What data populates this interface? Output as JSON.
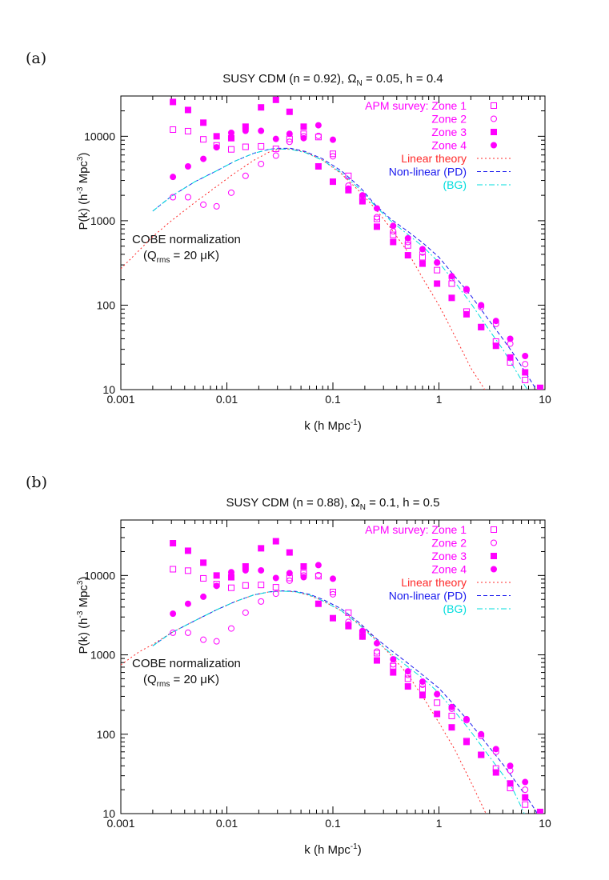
{
  "chart_data": [
    {
      "type": "line",
      "panel_label": "(a)",
      "title_main": "SUSY CDM (n = 0.92),",
      "title_omega": "Ω",
      "title_omega_sub": "N",
      "title_rest": "= 0.05,  h = 0.4",
      "xlabel_main": "k (h Mpc",
      "xlabel_sup": "-1",
      "xlabel_end": ")",
      "ylabel_main": "P(k) (h",
      "ylabel_sup1": "-3",
      "ylabel_mid": " Mpc",
      "ylabel_sup2": "3",
      "ylabel_end": ")",
      "xscale": "log",
      "yscale": "log",
      "xlim": [
        0.001,
        10
      ],
      "ylim": [
        10,
        30000
      ],
      "x_ticks": [
        "0.001",
        "0.01",
        "0.1",
        "1",
        "10"
      ],
      "y_ticks": [
        "10",
        "100",
        "1000",
        "10000"
      ],
      "annotation_line1": "COBE normalization",
      "annotation_q": "(Q",
      "annotation_q_sub": "rms",
      "annotation_q_end": " = 20 μK)",
      "legend_position": "top-right",
      "series": [
        {
          "name": "APM survey: Zone 1",
          "style": "open-square",
          "color": "#ff00ff",
          "x": [
            0.0031,
            0.0043,
            0.006,
            0.008,
            0.011,
            0.015,
            0.021,
            0.029,
            0.039,
            0.053,
            0.073,
            0.1,
            0.14,
            0.19,
            0.26,
            0.37,
            0.51,
            0.7,
            0.96,
            1.32,
            1.82,
            2.5,
            3.45,
            4.7,
            6.5
          ],
          "y": [
            12000,
            11500,
            9200,
            7800,
            7000,
            7500,
            7600,
            7100,
            9300,
            10700,
            9800,
            6200,
            3400,
            1900,
            1050,
            680,
            510,
            370,
            260,
            180,
            84,
            55,
            37,
            21,
            13
          ]
        },
        {
          "name": "Zone 2",
          "style": "open-circle",
          "color": "#ff00ff",
          "x": [
            0.0031,
            0.0043,
            0.006,
            0.008,
            0.011,
            0.015,
            0.021,
            0.029,
            0.039,
            0.053,
            0.073,
            0.1,
            0.14,
            0.19,
            0.26,
            0.37,
            0.51,
            0.7,
            0.96,
            1.32,
            1.82,
            2.5,
            3.45,
            4.7,
            6.5
          ],
          "y": [
            1900,
            1900,
            1550,
            1480,
            2150,
            3400,
            4700,
            5900,
            8600,
            10000,
            10100,
            5800,
            2600,
            1700,
            1100,
            750,
            560,
            420,
            320,
            210,
            150,
            95,
            60,
            35,
            20
          ]
        },
        {
          "name": "Zone 3",
          "style": "filled-square",
          "color": "#ff00ff",
          "x": [
            0.0031,
            0.0043,
            0.006,
            0.008,
            0.011,
            0.015,
            0.021,
            0.029,
            0.039,
            0.053,
            0.073,
            0.1,
            0.14,
            0.19,
            0.26,
            0.37,
            0.51,
            0.7,
            0.96,
            1.32,
            1.82,
            2.5,
            3.45,
            4.7,
            6.5,
            9.0
          ],
          "y": [
            25500,
            20500,
            14500,
            10000,
            9500,
            13000,
            22000,
            27000,
            19500,
            13000,
            4400,
            2900,
            2300,
            1700,
            850,
            560,
            390,
            310,
            180,
            122,
            78,
            55,
            33,
            24,
            16,
            10.5
          ]
        },
        {
          "name": "Zone 4",
          "style": "filled-circle",
          "color": "#ff00ff",
          "x": [
            0.0031,
            0.0043,
            0.006,
            0.008,
            0.011,
            0.015,
            0.021,
            0.029,
            0.039,
            0.053,
            0.073,
            0.1,
            0.14,
            0.19,
            0.26,
            0.37,
            0.51,
            0.7,
            0.96,
            1.32,
            1.82,
            2.5,
            3.45,
            4.7,
            6.5
          ],
          "y": [
            3300,
            4400,
            5400,
            7400,
            11000,
            11600,
            11600,
            9300,
            10700,
            9500,
            13500,
            9100,
            2400,
            2000,
            1400,
            870,
            620,
            460,
            320,
            220,
            155,
            100,
            65,
            40,
            25
          ]
        },
        {
          "name": "Linear theory",
          "style": "dotted",
          "color": "#ff2a2a",
          "x": [
            0.001,
            0.0015,
            0.002,
            0.003,
            0.005,
            0.008,
            0.012,
            0.018,
            0.025,
            0.03,
            0.04,
            0.055,
            0.08,
            0.12,
            0.18,
            0.25,
            0.35,
            0.5,
            0.7,
            1.0,
            1.4,
            2.0,
            2.7,
            3.1
          ],
          "y": [
            270,
            450,
            650,
            1000,
            1650,
            2550,
            3700,
            5200,
            6500,
            7000,
            7100,
            6500,
            5200,
            3600,
            2200,
            1400,
            820,
            440,
            210,
            100,
            44,
            18,
            10,
            7
          ]
        },
        {
          "name": "Non-linear (PD)",
          "style": "dashed",
          "color": "#1a1aee",
          "x": [
            0.002,
            0.003,
            0.005,
            0.008,
            0.012,
            0.018,
            0.025,
            0.03,
            0.04,
            0.055,
            0.08,
            0.12,
            0.18,
            0.25,
            0.35,
            0.5,
            0.7,
            1.0,
            1.5,
            2.0,
            3.0,
            4.0,
            5.0,
            7.0,
            8.5
          ],
          "y": [
            1300,
            1950,
            2900,
            3900,
            5100,
            6300,
            7000,
            7200,
            7200,
            6600,
            5400,
            3900,
            2500,
            1550,
            1050,
            760,
            550,
            370,
            200,
            130,
            65,
            40,
            27,
            14,
            9.5
          ]
        },
        {
          "name": "(BG)",
          "style": "dash-dot",
          "color": "#00dddd",
          "x": [
            0.002,
            0.003,
            0.005,
            0.008,
            0.012,
            0.018,
            0.025,
            0.03,
            0.04,
            0.055,
            0.08,
            0.12,
            0.18,
            0.25,
            0.35,
            0.5,
            0.7,
            1.0,
            1.5,
            2.0,
            3.0,
            4.0,
            5.0,
            6.5,
            7.5
          ],
          "y": [
            1300,
            1950,
            2900,
            3900,
            5100,
            6300,
            7000,
            7100,
            7000,
            6400,
            5200,
            3700,
            2350,
            1500,
            1000,
            700,
            500,
            320,
            170,
            105,
            50,
            30,
            19,
            11,
            8.5
          ]
        }
      ]
    },
    {
      "type": "line",
      "panel_label": "(b)",
      "title_main": "SUSY CDM (n = 0.88),",
      "title_omega": "Ω",
      "title_omega_sub": "N",
      "title_rest": "= 0.1,  h = 0.5",
      "xlabel_main": "k (h Mpc",
      "xlabel_sup": "-1",
      "xlabel_end": ")",
      "ylabel_main": "P(k) (h",
      "ylabel_sup1": "-3",
      "ylabel_mid": " Mpc",
      "ylabel_sup2": "3",
      "ylabel_end": ")",
      "xscale": "log",
      "yscale": "log",
      "xlim": [
        0.001,
        10
      ],
      "ylim": [
        10,
        50000
      ],
      "x_ticks": [
        "0.001",
        "0.01",
        "0.1",
        "1",
        "10"
      ],
      "y_ticks": [
        "10",
        "100",
        "1000",
        "10000"
      ],
      "annotation_line1": "COBE normalization",
      "annotation_q": "(Q",
      "annotation_q_sub": "rms",
      "annotation_q_end": " = 20 μK)",
      "legend_position": "top-right",
      "series": [
        {
          "name": "APM survey: Zone 1",
          "style": "open-square",
          "color": "#ff00ff",
          "x": [
            0.0031,
            0.0043,
            0.006,
            0.008,
            0.011,
            0.015,
            0.021,
            0.029,
            0.039,
            0.053,
            0.073,
            0.1,
            0.14,
            0.19,
            0.26,
            0.37,
            0.51,
            0.7,
            0.96,
            1.32,
            1.82,
            2.5,
            3.45,
            4.7,
            6.5
          ],
          "y": [
            12000,
            11500,
            9200,
            7800,
            7000,
            7500,
            7600,
            7100,
            9300,
            10700,
            9800,
            6200,
            3400,
            1900,
            1050,
            720,
            500,
            370,
            250,
            170,
            82,
            55,
            37,
            21,
            13
          ]
        },
        {
          "name": "Zone 2",
          "style": "open-circle",
          "color": "#ff00ff",
          "x": [
            0.0031,
            0.0043,
            0.006,
            0.008,
            0.011,
            0.015,
            0.021,
            0.029,
            0.039,
            0.053,
            0.073,
            0.1,
            0.14,
            0.19,
            0.26,
            0.37,
            0.51,
            0.7,
            0.96,
            1.32,
            1.82,
            2.5,
            3.45,
            4.7,
            6.5
          ],
          "y": [
            1900,
            1900,
            1550,
            1480,
            2150,
            3400,
            4700,
            5900,
            8600,
            10000,
            10100,
            5800,
            2600,
            1700,
            1100,
            760,
            560,
            420,
            320,
            210,
            150,
            95,
            60,
            35,
            20
          ]
        },
        {
          "name": "Zone 3",
          "style": "filled-square",
          "color": "#ff00ff",
          "x": [
            0.0031,
            0.0043,
            0.006,
            0.008,
            0.011,
            0.015,
            0.021,
            0.029,
            0.039,
            0.053,
            0.073,
            0.1,
            0.14,
            0.19,
            0.26,
            0.37,
            0.51,
            0.7,
            0.96,
            1.32,
            1.82,
            2.5,
            3.45,
            4.7,
            6.5,
            9.0
          ],
          "y": [
            25500,
            20500,
            14500,
            10000,
            9500,
            13000,
            22000,
            27000,
            19500,
            13000,
            4400,
            2900,
            2300,
            1700,
            850,
            600,
            400,
            310,
            180,
            122,
            80,
            55,
            33,
            24,
            16,
            10.5
          ]
        },
        {
          "name": "Zone 4",
          "style": "filled-circle",
          "color": "#ff00ff",
          "x": [
            0.0031,
            0.0043,
            0.006,
            0.008,
            0.011,
            0.015,
            0.021,
            0.029,
            0.039,
            0.053,
            0.073,
            0.1,
            0.14,
            0.19,
            0.26,
            0.37,
            0.51,
            0.7,
            0.96,
            1.32,
            1.82,
            2.5,
            3.45,
            4.7,
            6.5
          ],
          "y": [
            3300,
            4400,
            5400,
            7400,
            11000,
            11600,
            11600,
            9300,
            10700,
            9500,
            13500,
            9100,
            2400,
            2000,
            1400,
            880,
            620,
            460,
            320,
            220,
            155,
            100,
            65,
            40,
            25
          ]
        },
        {
          "name": "Linear theory",
          "style": "dotted",
          "color": "#ff2a2a",
          "x": [
            0.001,
            0.0015,
            0.002,
            0.003,
            0.005,
            0.008,
            0.012,
            0.018,
            0.025,
            0.033,
            0.045,
            0.06,
            0.08,
            0.12,
            0.18,
            0.25,
            0.35,
            0.5,
            0.7,
            1.0,
            1.4,
            2.0,
            2.6,
            3.0
          ],
          "y": [
            750,
            1100,
            1350,
            1900,
            2700,
            3700,
            4700,
            5700,
            6200,
            6400,
            6200,
            5600,
            4800,
            3600,
            2400,
            1600,
            1000,
            580,
            300,
            140,
            65,
            25,
            12,
            8
          ]
        },
        {
          "name": "Non-linear (PD)",
          "style": "dashed",
          "color": "#1a1aee",
          "x": [
            0.002,
            0.003,
            0.005,
            0.008,
            0.012,
            0.018,
            0.025,
            0.033,
            0.045,
            0.06,
            0.08,
            0.12,
            0.18,
            0.25,
            0.35,
            0.5,
            0.7,
            1.0,
            1.5,
            2.0,
            3.0,
            4.0,
            5.0,
            7.0,
            8.5
          ],
          "y": [
            1300,
            1900,
            2700,
            3700,
            4700,
            5700,
            6200,
            6400,
            6300,
            5800,
            5000,
            3800,
            2500,
            1650,
            1150,
            800,
            560,
            380,
            210,
            135,
            68,
            42,
            28,
            15,
            10
          ]
        },
        {
          "name": "(BG)",
          "style": "dash-dot",
          "color": "#00dddd",
          "x": [
            0.002,
            0.003,
            0.005,
            0.008,
            0.012,
            0.018,
            0.025,
            0.033,
            0.045,
            0.06,
            0.08,
            0.12,
            0.18,
            0.25,
            0.35,
            0.5,
            0.7,
            1.0,
            1.5,
            2.0,
            3.0,
            4.0,
            5.0,
            6.0,
            6.5
          ],
          "y": [
            1300,
            1900,
            2700,
            3700,
            4700,
            5700,
            6200,
            6350,
            6200,
            5700,
            4800,
            3600,
            2350,
            1550,
            1050,
            720,
            510,
            330,
            175,
            108,
            52,
            31,
            20,
            12,
            9.5
          ]
        }
      ]
    }
  ]
}
